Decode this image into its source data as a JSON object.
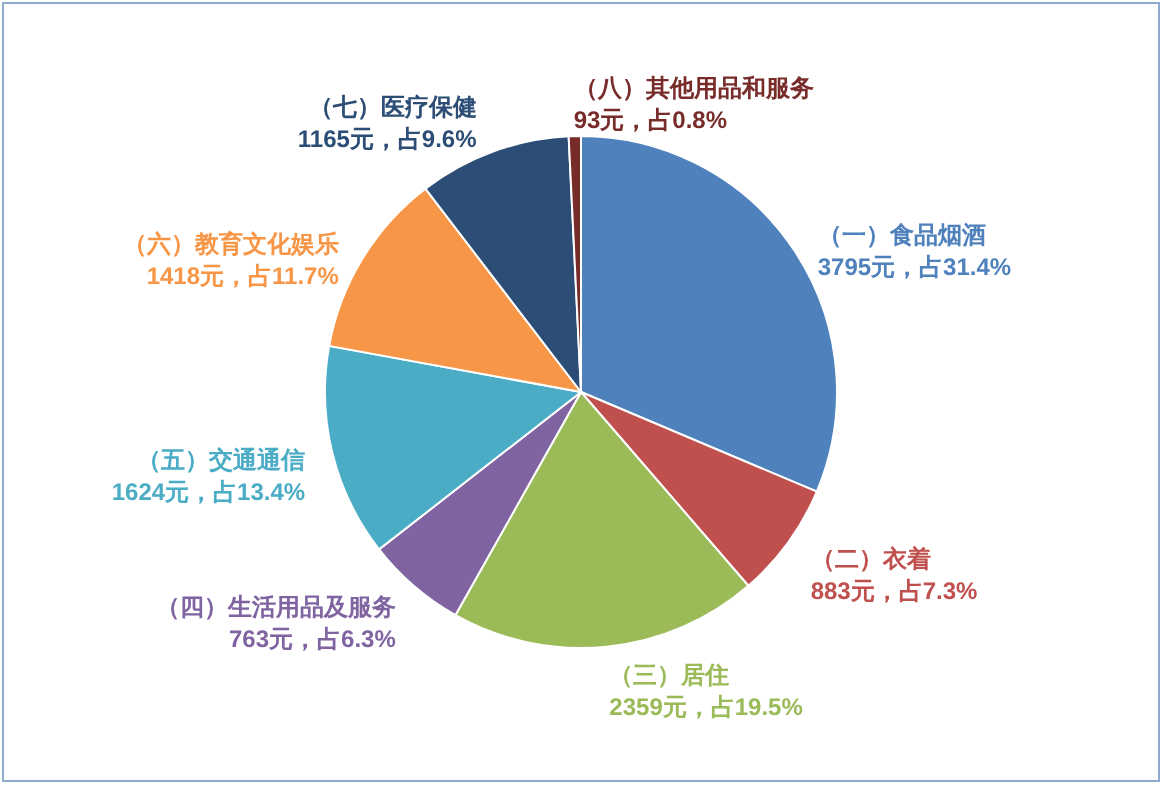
{
  "chart_data": {
    "type": "pie",
    "categories": [
      "（一）食品烟酒",
      "（二）衣着",
      "（三）居住",
      "（四）生活用品及服务",
      "（五）交通通信",
      "（六）教育文化娱乐",
      "（七）医疗保健",
      "（八）其他用品和服务"
    ],
    "values": [
      3795,
      883,
      2359,
      763,
      1624,
      1418,
      1165,
      93
    ],
    "value_labels": [
      "3795元，占31.4%",
      "883元，占7.3%",
      "2359元，占19.5%",
      "763元，占6.3%",
      "1624元，占13.4%",
      "1418元，占11.7%",
      "1165元，占9.6%",
      "93元，占0.8%"
    ],
    "colors": [
      "#4f81bd",
      "#c0504d",
      "#9bbb59",
      "#8064a2",
      "#4bacc6",
      "#f79646",
      "#2c4d75",
      "#772c2a"
    ]
  }
}
